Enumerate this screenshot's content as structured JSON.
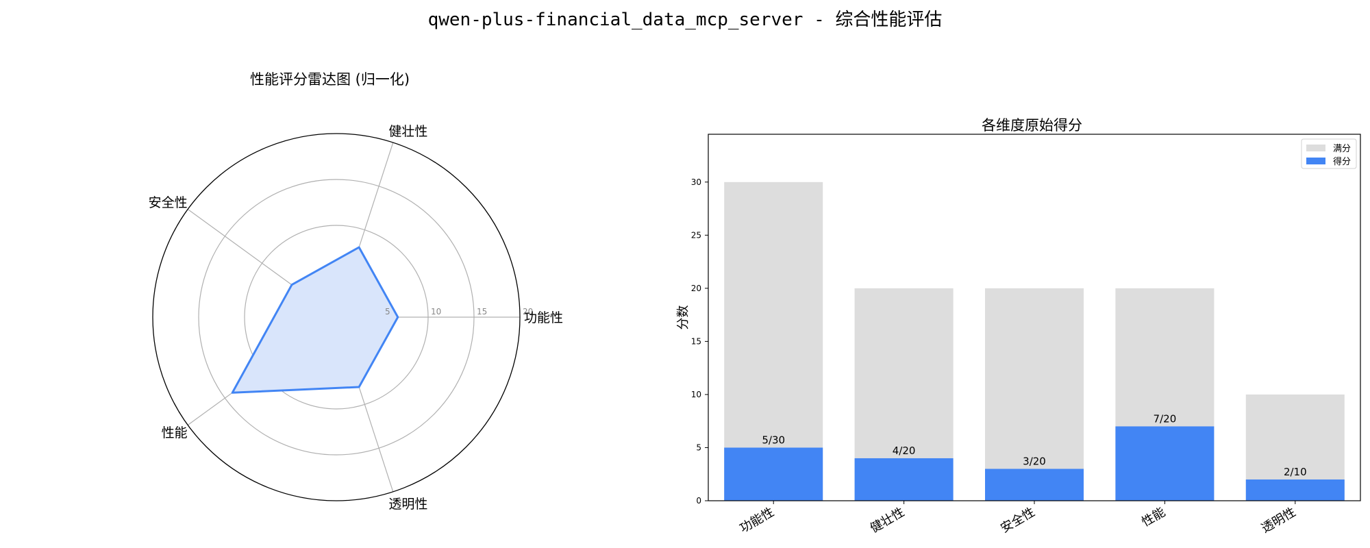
{
  "title": "qwen-plus-financial_data_mcp_server - 综合性能评估",
  "chart_data": [
    {
      "type": "radar",
      "title": "性能评分雷达图 (归一化)",
      "axes": [
        "功能性",
        "健壮性",
        "安全性",
        "性能",
        "透明性"
      ],
      "values": [
        6.7,
        8.0,
        6.0,
        14.0,
        8.0
      ],
      "radial_ticks": [
        5,
        10,
        15,
        20
      ],
      "rmax": 20,
      "line_color": "#4285f4",
      "fill_color": "#d9e5fb",
      "grid": true
    },
    {
      "type": "bar",
      "title": "各维度原始得分",
      "ylabel": "分数",
      "categories": [
        "功能性",
        "健壮性",
        "安全性",
        "性能",
        "透明性"
      ],
      "series": [
        {
          "name": "满分",
          "values": [
            30,
            20,
            20,
            20,
            10
          ],
          "color": "#dddddd"
        },
        {
          "name": "得分",
          "values": [
            5,
            4,
            3,
            7,
            2
          ],
          "color": "#4285f4"
        }
      ],
      "data_labels": [
        "5/30",
        "4/20",
        "3/20",
        "7/20",
        "2/10"
      ],
      "yticks": [
        0,
        5,
        10,
        15,
        20,
        25,
        30
      ],
      "ylim": [
        0,
        34.5
      ],
      "legend": "top-right",
      "grid": false
    }
  ]
}
